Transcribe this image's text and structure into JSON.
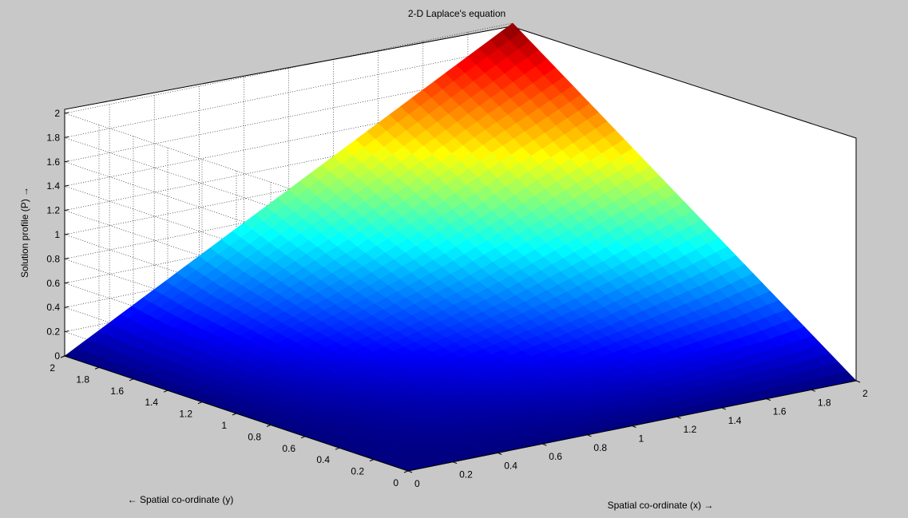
{
  "chart_data": {
    "type": "surface",
    "title": "2-D Laplace's equation",
    "xlabel": "Spatial co-ordinate (x) →",
    "ylabel": "← Spatial co-ordinate (y)",
    "zlabel": "Solution profile (P) →",
    "xlim": [
      0,
      2
    ],
    "ylim": [
      0,
      2
    ],
    "zlim": [
      0,
      2
    ],
    "x_ticks": [
      "0",
      "0.2",
      "0.4",
      "0.6",
      "0.8",
      "1",
      "1.2",
      "1.4",
      "1.6",
      "1.8",
      "2"
    ],
    "y_ticks": [
      "0",
      "0.2",
      "0.4",
      "0.6",
      "0.8",
      "1",
      "1.2",
      "1.4",
      "1.6",
      "1.8",
      "2"
    ],
    "z_ticks": [
      "0",
      "0.2",
      "0.4",
      "0.6",
      "0.8",
      "1",
      "1.2",
      "1.4",
      "1.6",
      "1.8",
      "2"
    ],
    "grid": true,
    "colormap": "jet",
    "surface": {
      "x_values": [
        0,
        0.2,
        0.4,
        0.6,
        0.8,
        1.0,
        1.2,
        1.4,
        1.6,
        1.8,
        2.0
      ],
      "y_values": [
        0,
        0.2,
        0.4,
        0.6,
        0.8,
        1.0,
        1.2,
        1.4,
        1.6,
        1.8,
        2.0
      ],
      "z_rows_by_y": [
        [
          0,
          0,
          0,
          0,
          0,
          0,
          0,
          0,
          0,
          0,
          0
        ],
        [
          0,
          0.01,
          0.02,
          0.03,
          0.05,
          0.07,
          0.09,
          0.12,
          0.14,
          0.16,
          0.2
        ],
        [
          0,
          0.02,
          0.05,
          0.07,
          0.1,
          0.14,
          0.18,
          0.23,
          0.28,
          0.33,
          0.4
        ],
        [
          0,
          0.03,
          0.07,
          0.11,
          0.16,
          0.21,
          0.27,
          0.34,
          0.42,
          0.5,
          0.6
        ],
        [
          0,
          0.05,
          0.1,
          0.16,
          0.22,
          0.29,
          0.37,
          0.46,
          0.57,
          0.68,
          0.8
        ],
        [
          0,
          0.07,
          0.14,
          0.21,
          0.29,
          0.38,
          0.48,
          0.6,
          0.72,
          0.86,
          1.0
        ],
        [
          0,
          0.09,
          0.18,
          0.27,
          0.37,
          0.48,
          0.6,
          0.74,
          0.89,
          1.05,
          1.2
        ],
        [
          0,
          0.12,
          0.23,
          0.34,
          0.46,
          0.6,
          0.74,
          0.9,
          1.08,
          1.24,
          1.4
        ],
        [
          0,
          0.14,
          0.28,
          0.42,
          0.57,
          0.72,
          0.89,
          1.08,
          1.27,
          1.43,
          1.6
        ],
        [
          0,
          0.16,
          0.33,
          0.5,
          0.68,
          0.86,
          1.05,
          1.24,
          1.43,
          1.62,
          1.8
        ],
        [
          0,
          0.2,
          0.4,
          0.6,
          0.8,
          1.0,
          1.2,
          1.4,
          1.6,
          1.8,
          2.0
        ]
      ]
    }
  }
}
